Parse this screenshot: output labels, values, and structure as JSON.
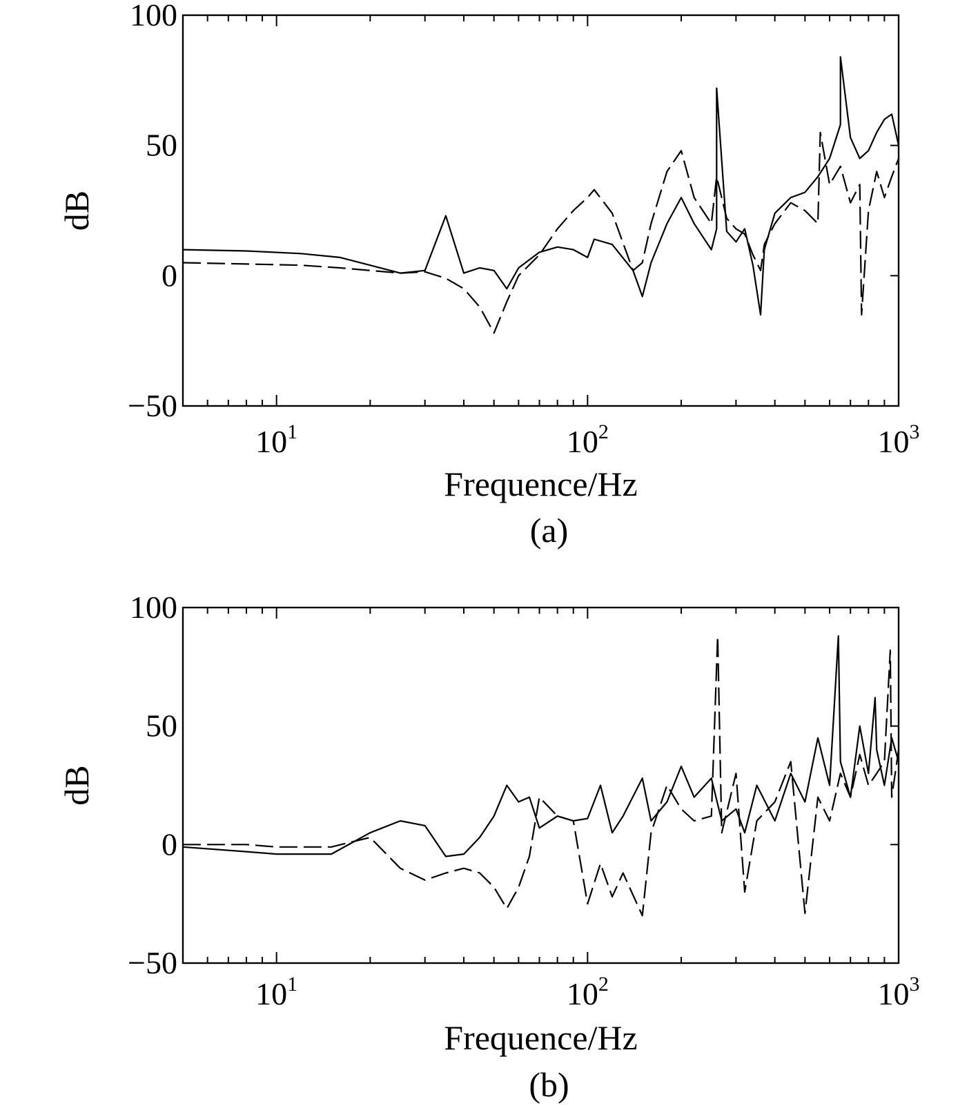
{
  "chart_data": [
    {
      "type": "line",
      "panel_caption": "(a)",
      "xlabel": "Frequence/Hz",
      "ylabel": "dB",
      "xscale": "log",
      "xlim": [
        5,
        1000
      ],
      "ylim": [
        -50,
        100
      ],
      "yticks": [
        -50,
        0,
        50,
        100
      ],
      "ytick_labels": [
        "−50",
        "0",
        "50",
        "100"
      ],
      "xticks": [
        {
          "value": 10,
          "base": "10",
          "exp": "1"
        },
        {
          "value": 100,
          "base": "10",
          "exp": "2"
        },
        {
          "value": 1000,
          "base": "10",
          "exp": "3"
        }
      ],
      "grid": false,
      "series": [
        {
          "style": "solid",
          "x": [
            5,
            8,
            12,
            16,
            20,
            25,
            30,
            35,
            40,
            45,
            50,
            55,
            60,
            70,
            80,
            90,
            100,
            105,
            120,
            140,
            150,
            160,
            180,
            200,
            220,
            250,
            260,
            280,
            300,
            320,
            340,
            360,
            370,
            400,
            450,
            500,
            550,
            600,
            650,
            700,
            750,
            800,
            850,
            900,
            950,
            1000
          ],
          "y": [
            10,
            9.5,
            8.5,
            7,
            4,
            1,
            2,
            23,
            1,
            3,
            2,
            -5,
            3,
            9,
            11,
            10,
            7,
            14,
            12,
            2,
            -8,
            5,
            20,
            30,
            20,
            10,
            18,
            17,
            13,
            18,
            4,
            -15,
            10,
            24,
            30,
            32,
            38,
            45,
            58,
            53,
            45,
            48,
            55,
            60,
            62,
            50
          ],
          "y_peaks": [
            {
              "x": 260,
              "y": 72
            },
            {
              "x": 650,
              "y": 84
            }
          ]
        },
        {
          "style": "dashed",
          "x": [
            5,
            8,
            12,
            16,
            20,
            25,
            30,
            35,
            40,
            45,
            50,
            55,
            60,
            70,
            80,
            90,
            100,
            105,
            120,
            140,
            150,
            160,
            180,
            200,
            220,
            250,
            260,
            280,
            300,
            320,
            340,
            360,
            370,
            400,
            450,
            500,
            550,
            600,
            650,
            700,
            750,
            800,
            850,
            900,
            950,
            1000
          ],
          "y": [
            5,
            4.5,
            4,
            3,
            2,
            1,
            1.5,
            -1,
            -5,
            -12,
            -22,
            -10,
            0,
            8,
            18,
            25,
            30,
            33,
            24,
            2,
            5,
            20,
            40,
            48,
            30,
            20,
            38,
            22,
            18,
            16,
            8,
            2,
            12,
            20,
            28,
            25,
            20,
            35,
            42,
            28,
            35,
            25,
            40,
            30,
            38,
            45
          ],
          "y_peaks": [
            {
              "x": 560,
              "y": 55
            },
            {
              "x": 760,
              "y": -15
            }
          ]
        }
      ]
    },
    {
      "type": "line",
      "panel_caption": "(b)",
      "xlabel": "Frequence/Hz",
      "ylabel": "dB",
      "xscale": "log",
      "xlim": [
        5,
        1000
      ],
      "ylim": [
        -50,
        100
      ],
      "yticks": [
        -50,
        0,
        50,
        100
      ],
      "ytick_labels": [
        "−50",
        "0",
        "50",
        "100"
      ],
      "xticks": [
        {
          "value": 10,
          "base": "10",
          "exp": "1"
        },
        {
          "value": 100,
          "base": "10",
          "exp": "2"
        },
        {
          "value": 1000,
          "base": "10",
          "exp": "3"
        }
      ],
      "grid": false,
      "series": [
        {
          "style": "solid",
          "x": [
            5,
            8,
            10,
            15,
            20,
            25,
            30,
            35,
            40,
            45,
            50,
            55,
            60,
            65,
            70,
            80,
            90,
            100,
            110,
            120,
            130,
            150,
            160,
            180,
            200,
            220,
            250,
            270,
            300,
            320,
            350,
            400,
            450,
            500,
            550,
            600,
            650,
            700,
            750,
            800,
            850,
            900,
            950,
            1000
          ],
          "y": [
            -1,
            -3,
            -4,
            -4,
            5,
            10,
            8,
            -5,
            -4,
            3,
            12,
            25,
            18,
            20,
            7,
            12,
            10,
            11,
            25,
            5,
            12,
            28,
            10,
            18,
            33,
            20,
            28,
            10,
            15,
            5,
            25,
            10,
            30,
            18,
            45,
            25,
            35,
            20,
            50,
            30,
            40,
            25,
            45,
            35
          ],
          "y_peaks": [
            {
              "x": 640,
              "y": 88
            },
            {
              "x": 840,
              "y": 62
            }
          ]
        },
        {
          "style": "dashed",
          "x": [
            5,
            8,
            10,
            15,
            20,
            25,
            30,
            35,
            40,
            45,
            50,
            55,
            60,
            65,
            70,
            80,
            90,
            100,
            110,
            120,
            130,
            150,
            160,
            180,
            200,
            220,
            250,
            270,
            300,
            320,
            350,
            400,
            450,
            500,
            550,
            600,
            650,
            700,
            750,
            800,
            850,
            900,
            950,
            1000
          ],
          "y": [
            0,
            0,
            -1,
            -1,
            3,
            -10,
            -15,
            -12,
            -10,
            -12,
            -18,
            -27,
            -18,
            -5,
            20,
            12,
            10,
            -25,
            -8,
            -22,
            -12,
            -30,
            5,
            25,
            15,
            10,
            12,
            5,
            30,
            -20,
            10,
            18,
            35,
            -29,
            20,
            10,
            30,
            20,
            38,
            25,
            30,
            35,
            20,
            40
          ],
          "y_peaks": [
            {
              "x": 262,
              "y": 88
            },
            {
              "x": 940,
              "y": 82
            }
          ]
        }
      ]
    }
  ]
}
